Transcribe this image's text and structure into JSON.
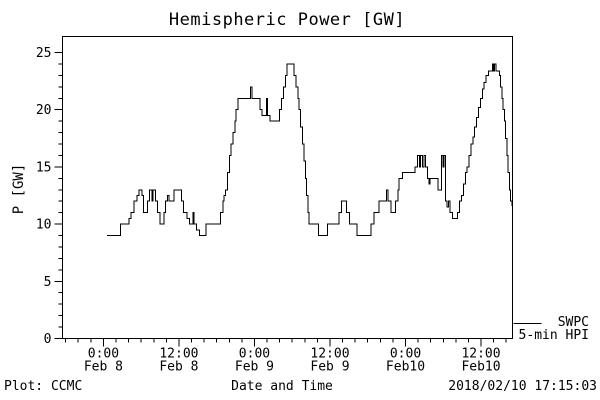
{
  "title": "Hemispheric Power [GW]",
  "footer": {
    "left": "Plot: CCMC",
    "center": "Date and Time",
    "right": "2018/02/10 17:15:03"
  },
  "legend": {
    "line1": "SWPC",
    "line2": "5-min HPI"
  },
  "chart_data": {
    "type": "line",
    "step": true,
    "title": "Hemispheric Power [GW]",
    "xlabel": "Date and Time",
    "ylabel": "P [GW]",
    "ylim": [
      0,
      25
    ],
    "y_axis_top_value": 26.4,
    "y_major_ticks": [
      0,
      5,
      10,
      15,
      20,
      25
    ],
    "y_minor_step": 1,
    "grid": "off",
    "legend_position": "right-outside-bottom",
    "line_color": "#000000",
    "background_color": "#ffffff",
    "x_unit": "hours_since_Feb8_00:00",
    "x_range_hours": [
      -6.5,
      65.0
    ],
    "x_minor_step_hours": 2,
    "x_major_ticks": [
      {
        "t": 0,
        "time": "0:00",
        "date": "Feb 8"
      },
      {
        "t": 12,
        "time": "12:00",
        "date": "Feb 8"
      },
      {
        "t": 24,
        "time": "0:00",
        "date": "Feb 9"
      },
      {
        "t": 36,
        "time": "12:00",
        "date": "Feb 9"
      },
      {
        "t": 48,
        "time": "0:00",
        "date": "Feb10"
      },
      {
        "t": 60,
        "time": "12:00",
        "date": "Feb10"
      }
    ],
    "series": [
      {
        "name": "SWPC 5-min HPI",
        "points_t_gw": [
          [
            0.6,
            9
          ],
          [
            2.75,
            10
          ],
          [
            4.1,
            10.5
          ],
          [
            4.4,
            11
          ],
          [
            4.9,
            12
          ],
          [
            5.3,
            12.5
          ],
          [
            5.65,
            13
          ],
          [
            6.1,
            12.5
          ],
          [
            6.4,
            11
          ],
          [
            7.0,
            12
          ],
          [
            7.3,
            13
          ],
          [
            7.7,
            12
          ],
          [
            7.9,
            13
          ],
          [
            8.3,
            12
          ],
          [
            8.6,
            11
          ],
          [
            9.0,
            10
          ],
          [
            9.6,
            11
          ],
          [
            9.9,
            12
          ],
          [
            10.2,
            12.5
          ],
          [
            10.4,
            12
          ],
          [
            11.2,
            13
          ],
          [
            12.4,
            12
          ],
          [
            12.7,
            11
          ],
          [
            13.3,
            10.5
          ],
          [
            13.7,
            10
          ],
          [
            14.2,
            11
          ],
          [
            14.4,
            10
          ],
          [
            14.8,
            9.5
          ],
          [
            15.3,
            9
          ],
          [
            16.3,
            10
          ],
          [
            18.6,
            11
          ],
          [
            19.0,
            12
          ],
          [
            19.2,
            12.5
          ],
          [
            19.4,
            13
          ],
          [
            19.7,
            14.5
          ],
          [
            20.0,
            16
          ],
          [
            20.3,
            17
          ],
          [
            20.6,
            18
          ],
          [
            20.9,
            19
          ],
          [
            21.1,
            20
          ],
          [
            21.4,
            21
          ],
          [
            23.4,
            22
          ],
          [
            23.6,
            21
          ],
          [
            24.9,
            20
          ],
          [
            25.2,
            19.5
          ],
          [
            25.9,
            21
          ],
          [
            26.1,
            19.5
          ],
          [
            26.5,
            19
          ],
          [
            28.0,
            20
          ],
          [
            28.3,
            21
          ],
          [
            28.6,
            22
          ],
          [
            28.9,
            23
          ],
          [
            29.2,
            24
          ],
          [
            30.3,
            23
          ],
          [
            30.6,
            22
          ],
          [
            30.9,
            21
          ],
          [
            31.1,
            20
          ],
          [
            31.3,
            18.5
          ],
          [
            31.6,
            17
          ],
          [
            31.9,
            15.5
          ],
          [
            32.1,
            14
          ],
          [
            32.3,
            12.5
          ],
          [
            32.5,
            11
          ],
          [
            32.7,
            10
          ],
          [
            34.2,
            9
          ],
          [
            35.6,
            10
          ],
          [
            37.4,
            11
          ],
          [
            37.8,
            12
          ],
          [
            38.6,
            11
          ],
          [
            39.1,
            10
          ],
          [
            40.3,
            9
          ],
          [
            42.5,
            10
          ],
          [
            43.0,
            11
          ],
          [
            43.8,
            12
          ],
          [
            45.0,
            13
          ],
          [
            45.2,
            12
          ],
          [
            45.7,
            11
          ],
          [
            46.4,
            12
          ],
          [
            46.8,
            13
          ],
          [
            47.0,
            14
          ],
          [
            47.5,
            14.5
          ],
          [
            49.5,
            15
          ],
          [
            49.9,
            16
          ],
          [
            50.2,
            15
          ],
          [
            50.4,
            16
          ],
          [
            50.7,
            15
          ],
          [
            50.9,
            16
          ],
          [
            51.2,
            15
          ],
          [
            51.5,
            14
          ],
          [
            51.7,
            13.5
          ],
          [
            51.9,
            14
          ],
          [
            53.2,
            13
          ],
          [
            53.7,
            16
          ],
          [
            53.95,
            15
          ],
          [
            54.1,
            16
          ],
          [
            54.35,
            12
          ],
          [
            54.6,
            11.5
          ],
          [
            54.8,
            12
          ],
          [
            55.1,
            11
          ],
          [
            55.5,
            10.5
          ],
          [
            56.3,
            11
          ],
          [
            56.6,
            12
          ],
          [
            56.9,
            12.5
          ],
          [
            57.2,
            13.5
          ],
          [
            57.5,
            14.5
          ],
          [
            57.8,
            15
          ],
          [
            58.1,
            16
          ],
          [
            58.4,
            17
          ],
          [
            58.7,
            17.6
          ],
          [
            59.0,
            18.5
          ],
          [
            59.3,
            19.3
          ],
          [
            59.6,
            20.2
          ],
          [
            59.9,
            21
          ],
          [
            60.2,
            21.8
          ],
          [
            60.5,
            22.4
          ],
          [
            60.8,
            23
          ],
          [
            61.2,
            23.4
          ],
          [
            61.8,
            24
          ],
          [
            62.0,
            23.4
          ],
          [
            62.15,
            24
          ],
          [
            62.35,
            23.4
          ],
          [
            62.9,
            23
          ],
          [
            63.1,
            22
          ],
          [
            63.3,
            21
          ],
          [
            63.5,
            20
          ],
          [
            63.7,
            19
          ],
          [
            63.9,
            17.5
          ],
          [
            64.1,
            16
          ],
          [
            64.3,
            14.5
          ],
          [
            64.5,
            13
          ],
          [
            64.7,
            12
          ],
          [
            64.9,
            11.6
          ]
        ]
      }
    ]
  }
}
